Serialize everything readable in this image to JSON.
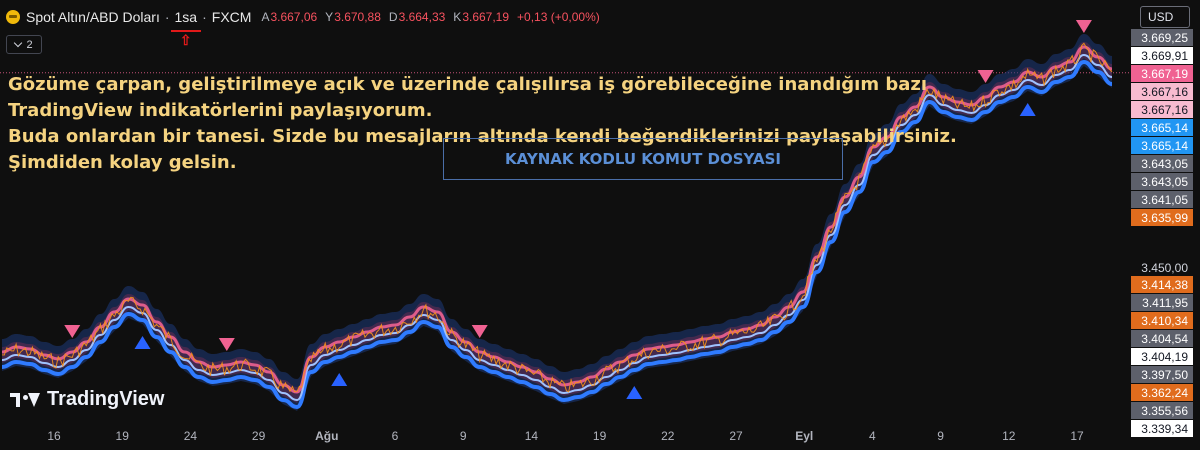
{
  "header": {
    "symbol": "Spot Altın/ABD Doları",
    "separator": "·",
    "timeframe": "1sa",
    "exchange": "FXCM",
    "timeframe_marker": "⇧",
    "ohlc": {
      "open_label": "A",
      "open": "3.667,06",
      "high_label": "Y",
      "high": "3.670,88",
      "low_label": "D",
      "low": "3.664,33",
      "close_label": "K",
      "close": "3.667,19",
      "change": "+0,13 (+0,00%)"
    },
    "indicator_count": "2"
  },
  "currency": "USD",
  "overlay": {
    "lines": [
      "Gözüme çarpan, geliştirilmeye açık ve üzerinde çalışılırsa iş görebileceğine inandığım bazı",
      "TradingView indikatörlerini paylaşıyorum.",
      "Buda onlardan bir tanesi. Sizde bu mesajların altında kendi beğendiklerinizi paylaşabilirsiniz.",
      "Şimdiden kolay gelsin."
    ],
    "source_box": "KAYNAK KODLU KOMUT DOSYASI"
  },
  "brand": "TradingView",
  "colors": {
    "background": "#0f0f0f",
    "up_marker": "#2962ff",
    "down_marker": "#f06292",
    "candle": "#f7931a",
    "band_blue": "#2f7bff",
    "band_pink": "#f06292"
  },
  "chart_data": {
    "type": "line",
    "x_ticks": [
      "16",
      "19",
      "24",
      "29",
      "Ağu",
      "6",
      "9",
      "14",
      "19",
      "22",
      "27",
      "Eyl",
      "4",
      "9",
      "12",
      "17"
    ],
    "y_range": [
      3320,
      3700
    ],
    "price_labels": [
      {
        "text": "3.669,25",
        "value": 3669.25,
        "style": "gray"
      },
      {
        "text": "3.669,91",
        "value": 3669.91,
        "style": "white"
      },
      {
        "text": "3.667,19",
        "value": 3667.19,
        "style": "pink"
      },
      {
        "text": "3.667,16",
        "value": 3667.16,
        "style": "lightpink"
      },
      {
        "text": "3.667,16",
        "value": 3667.16,
        "style": "lightpink"
      },
      {
        "text": "3.665,14",
        "value": 3665.14,
        "style": "blue"
      },
      {
        "text": "3.665,14",
        "value": 3665.14,
        "style": "blue"
      },
      {
        "text": "3.643,05",
        "value": 3643.05,
        "style": "gray"
      },
      {
        "text": "3.643,05",
        "value": 3643.05,
        "style": "gray"
      },
      {
        "text": "3.641,05",
        "value": 3641.05,
        "style": "gray"
      },
      {
        "text": "3.635,99",
        "value": 3635.99,
        "style": "orange"
      },
      {
        "text": "3.450,00",
        "value": 3450.0,
        "style": "plain"
      },
      {
        "text": "3.414,38",
        "value": 3414.38,
        "style": "orange"
      },
      {
        "text": "3.411,95",
        "value": 3411.95,
        "style": "gray"
      },
      {
        "text": "3.410,34",
        "value": 3410.34,
        "style": "orange"
      },
      {
        "text": "3.404,54",
        "value": 3404.54,
        "style": "gray"
      },
      {
        "text": "3.404,19",
        "value": 3404.19,
        "style": "white"
      },
      {
        "text": "3.397,50",
        "value": 3397.5,
        "style": "gray"
      },
      {
        "text": "3.362,24",
        "value": 3362.24,
        "style": "orange"
      },
      {
        "text": "3.355,56",
        "value": 3355.56,
        "style": "gray"
      },
      {
        "text": "3.339,34",
        "value": 3339.34,
        "style": "white"
      }
    ],
    "series": [
      {
        "values": [
          3385,
          3390,
          3388,
          3382,
          3378,
          3385,
          3395,
          3410,
          3425,
          3438,
          3432,
          3415,
          3400,
          3385,
          3375,
          3370,
          3372,
          3375,
          3372,
          3365,
          3352,
          3345,
          3380,
          3390,
          3395,
          3400,
          3405,
          3410,
          3412,
          3420,
          3430,
          3425,
          3405,
          3395,
          3385,
          3380,
          3375,
          3370,
          3365,
          3358,
          3352,
          3355,
          3360,
          3368,
          3375,
          3382,
          3388,
          3390,
          3392,
          3395,
          3398,
          3400,
          3405,
          3408,
          3412,
          3420,
          3430,
          3445,
          3480,
          3510,
          3540,
          3560,
          3590,
          3600,
          3620,
          3630,
          3650,
          3640,
          3635,
          3632,
          3640,
          3650,
          3655,
          3665,
          3660,
          3670,
          3675,
          3690,
          3680,
          3668
        ]
      }
    ],
    "markers": [
      {
        "type": "down",
        "index": 5
      },
      {
        "type": "up",
        "index": 10
      },
      {
        "type": "down",
        "index": 16
      },
      {
        "type": "up",
        "index": 24
      },
      {
        "type": "down",
        "index": 34
      },
      {
        "type": "up",
        "index": 45
      },
      {
        "type": "down",
        "index": 70
      },
      {
        "type": "up",
        "index": 73
      },
      {
        "type": "down",
        "index": 77
      }
    ]
  }
}
